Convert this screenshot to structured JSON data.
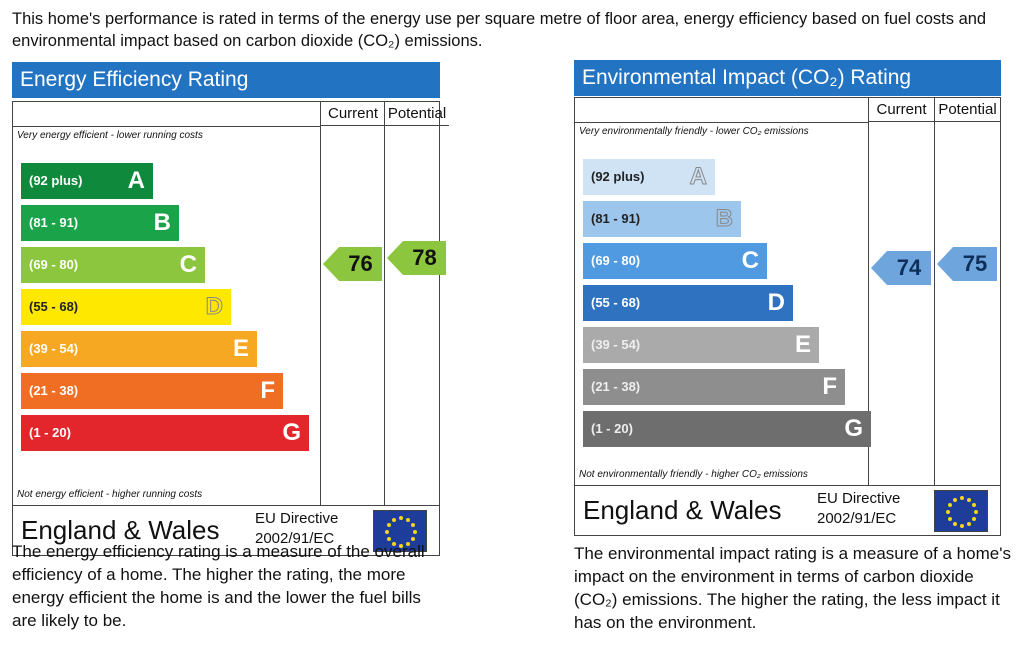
{
  "intro": "This home's performance is rated in terms of the energy use per square metre of floor area, energy efficiency based on fuel costs and environmental impact based on carbon dioxide (CO₂) emissions.",
  "chart_data": [
    {
      "type": "bar",
      "title": "Energy Efficiency Rating",
      "columns": [
        "Current",
        "Potential"
      ],
      "top_note": "Very energy efficient - lower running costs",
      "bottom_note": "Not energy efficient - higher running costs",
      "bands": [
        {
          "range": "(92 plus)",
          "letter": "A",
          "color": "#0f8a3c"
        },
        {
          "range": "(81 - 91)",
          "letter": "B",
          "color": "#1ba34a"
        },
        {
          "range": "(69 - 80)",
          "letter": "C",
          "color": "#8cc63f"
        },
        {
          "range": "(55 - 68)",
          "letter": "D",
          "color": "#ffe800"
        },
        {
          "range": "(39 - 54)",
          "letter": "E",
          "color": "#f7a823"
        },
        {
          "range": "(21 - 38)",
          "letter": "F",
          "color": "#ef6e23"
        },
        {
          "range": "(1 - 20)",
          "letter": "G",
          "color": "#e3262c"
        }
      ],
      "current": {
        "value": 76,
        "band": "C",
        "color": "#8cc63f"
      },
      "potential": {
        "value": 78,
        "band": "C",
        "color": "#8cc63f"
      },
      "footer": {
        "region": "England & Wales",
        "directive": "EU Directive",
        "directive_code": "2002/91/EC"
      },
      "description": "The energy efficiency rating is a measure of the overall efficiency of a home. The higher the rating, the more energy efficient the home is and the lower the fuel bills are likely to be."
    },
    {
      "type": "bar",
      "title": "Environmental Impact (CO₂) Rating",
      "columns": [
        "Current",
        "Potential"
      ],
      "top_note": "Very environmentally friendly - lower CO₂ emissions",
      "bottom_note": "Not environmentally friendly - higher CO₂ emissions",
      "bands": [
        {
          "range": "(92 plus)",
          "letter": "A",
          "color": "#cfe3f5"
        },
        {
          "range": "(81 - 91)",
          "letter": "B",
          "color": "#9dc6ec"
        },
        {
          "range": "(69 - 80)",
          "letter": "C",
          "color": "#4f9ae0"
        },
        {
          "range": "(55 - 68)",
          "letter": "D",
          "color": "#2f73c0"
        },
        {
          "range": "(39 - 54)",
          "letter": "E",
          "color": "#aaaaaa"
        },
        {
          "range": "(21 - 38)",
          "letter": "F",
          "color": "#8e8e8e"
        },
        {
          "range": "(1 - 20)",
          "letter": "G",
          "color": "#6e6e6e"
        }
      ],
      "current": {
        "value": 74,
        "band": "C",
        "color": "#6ea5dd"
      },
      "potential": {
        "value": 75,
        "band": "C",
        "color": "#6ea5dd"
      },
      "footer": {
        "region": "England & Wales",
        "directive": "EU Directive",
        "directive_code": "2002/91/EC"
      },
      "description": "The environmental impact rating is a measure of a home's impact on the environment in terms of carbon dioxide (CO₂) emissions. The higher the rating, the less impact it has on the environment."
    }
  ]
}
